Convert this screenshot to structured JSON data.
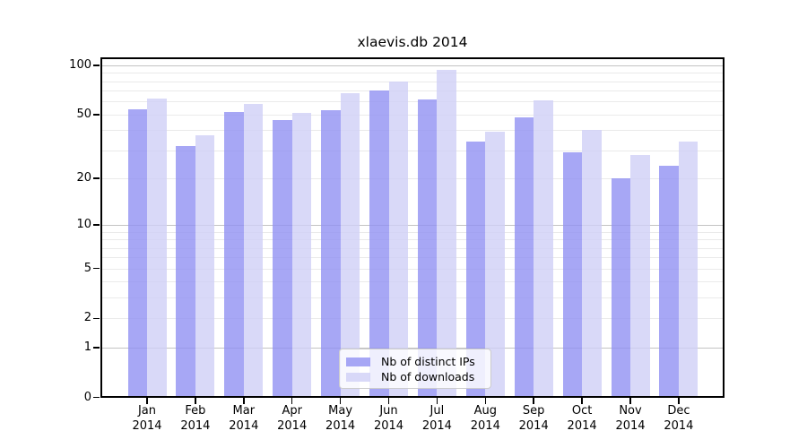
{
  "title": "xlaevis.db 2014",
  "chart_data": {
    "type": "bar",
    "scale": "symlog",
    "title": "xlaevis.db 2014",
    "categories": [
      "Jan",
      "Feb",
      "Mar",
      "Apr",
      "May",
      "Jun",
      "Jul",
      "Aug",
      "Sep",
      "Oct",
      "Nov",
      "Dec"
    ],
    "year": "2014",
    "series": [
      {
        "name": "Nb of distinct IPs",
        "color": "rgba(145,145,243,0.8)",
        "values": [
          54,
          32,
          52,
          46,
          53,
          70,
          62,
          34,
          48,
          29,
          20,
          24
        ]
      },
      {
        "name": "Nb of downloads",
        "color": "rgba(208,208,246,0.8)",
        "values": [
          63,
          37,
          58,
          51,
          68,
          80,
          94,
          39,
          61,
          40,
          28,
          34
        ]
      }
    ],
    "y_tick_labels": [
      "100",
      "50",
      "20",
      "10",
      "5",
      "2",
      "1",
      "0"
    ],
    "y_tick_values": [
      100,
      50,
      20,
      10,
      5,
      2,
      1,
      0
    ],
    "major_gridlines": [
      1,
      10,
      100
    ],
    "minor_gridlines": [
      2,
      3,
      4,
      5,
      6,
      7,
      8,
      9,
      20,
      30,
      40,
      50,
      60,
      70,
      80,
      90
    ],
    "ylim": [
      0,
      112
    ],
    "xlabel": "",
    "ylabel": "",
    "grid": true,
    "legend_position": "lower center"
  }
}
